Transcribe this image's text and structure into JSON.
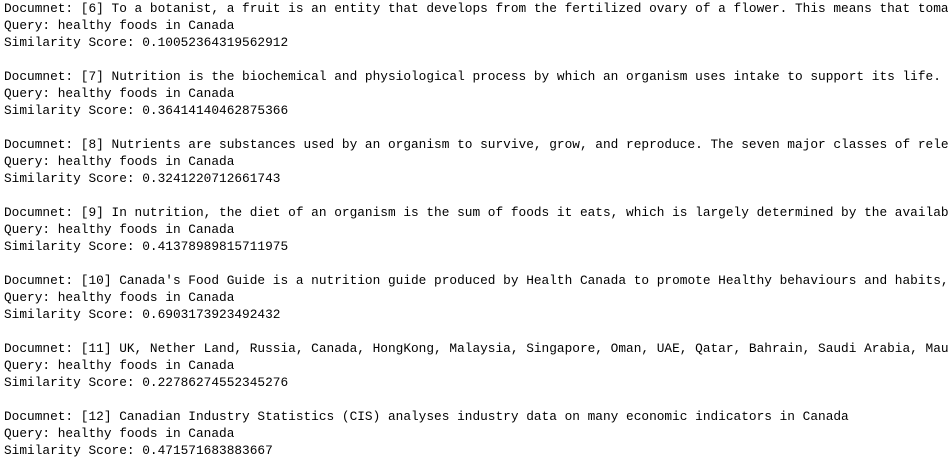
{
  "output": [
    {
      "document": "Documnet: [6] To a botanist, a fruit is an entity that develops from the fertilized ovary of a flower. This means that toma",
      "query": "Query: healthy foods in Canada",
      "score": "Similarity Score: 0.10052364319562912"
    },
    {
      "document": "Documnet: [7] Nutrition is the biochemical and physiological process by which an organism uses intake to support its life.",
      "query": "Query: healthy foods in Canada",
      "score": "Similarity Score: 0.36414140462875366"
    },
    {
      "document": "Documnet: [8] Nutrients are substances used by an organism to survive, grow, and reproduce. The seven major classes of rele",
      "query": "Query: healthy foods in Canada",
      "score": "Similarity Score: 0.3241220712661743"
    },
    {
      "document": "Documnet: [9] In nutrition, the diet of an organism is the sum of foods it eats, which is largely determined by the availab",
      "query": "Query: healthy foods in Canada",
      "score": "Similarity Score: 0.41378989815711975"
    },
    {
      "document": "Documnet: [10] Canada's Food Guide is a nutrition guide produced by Health Canada to promote Healthy behaviours and habits,",
      "query": "Query: healthy foods in Canada",
      "score": "Similarity Score: 0.6903173923492432"
    },
    {
      "document": "Documnet: [11] UK, Nether Land, Russia, Canada, HongKong, Malaysia, Singapore, Oman, UAE, Qatar, Bahrain, Saudi Arabia, Mau",
      "query": "Query: healthy foods in Canada",
      "score": "Similarity Score: 0.22786274552345276"
    },
    {
      "document": "Documnet: [12] Canadian Industry Statistics (CIS) analyses industry data on many economic indicators in Canada",
      "query": "Query: healthy foods in Canada",
      "score": "Similarity Score: 0.471571683883667"
    }
  ]
}
